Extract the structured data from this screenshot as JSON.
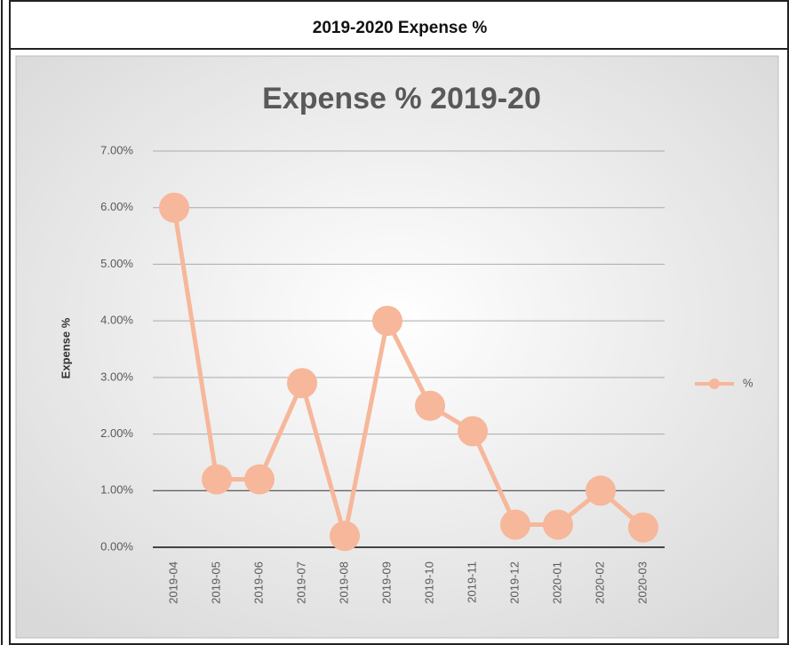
{
  "header": "2019-2020 Expense %",
  "chart_data": {
    "type": "line",
    "title": "Expense % 2019-20",
    "y_label": "Expense %",
    "categories": [
      "2019-04",
      "2019-05",
      "2019-06",
      "2019-07",
      "2019-08",
      "2019-09",
      "2019-10",
      "2019-11",
      "2019-12",
      "2020-01",
      "2020-02",
      "2020-03"
    ],
    "series": [
      {
        "name": "%",
        "color": "#f6b79b",
        "values": [
          6.0,
          1.2,
          1.2,
          2.9,
          0.2,
          4.0,
          2.5,
          2.05,
          0.4,
          0.4,
          1.0,
          0.35
        ]
      }
    ],
    "ylim": [
      0,
      7
    ],
    "yticks": [
      {
        "value": 0,
        "label": "0.00%"
      },
      {
        "value": 1,
        "label": "1.00%"
      },
      {
        "value": 2,
        "label": "2.00%"
      },
      {
        "value": 3,
        "label": "3.00%"
      },
      {
        "value": 4,
        "label": "4.00%"
      },
      {
        "value": 5,
        "label": "5.00%"
      },
      {
        "value": 6,
        "label": "6.00%"
      },
      {
        "value": 7,
        "label": "7.00%"
      }
    ],
    "grid": true,
    "legend": "right"
  }
}
